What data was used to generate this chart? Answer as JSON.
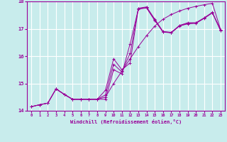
{
  "xlabel": "Windchill (Refroidissement éolien,°C)",
  "bg_color": "#c8ecec",
  "line_color": "#990099",
  "grid_color": "#ffffff",
  "xlim": [
    -0.5,
    23.5
  ],
  "ylim": [
    14.0,
    18.0
  ],
  "xticks": [
    0,
    1,
    2,
    3,
    4,
    5,
    6,
    7,
    8,
    9,
    10,
    11,
    12,
    13,
    14,
    15,
    16,
    17,
    18,
    19,
    20,
    21,
    22,
    23
  ],
  "yticks": [
    14,
    15,
    16,
    17,
    18
  ],
  "curve1_x": [
    0,
    1,
    2,
    3,
    4,
    5,
    6,
    7,
    8,
    9,
    10,
    11,
    12,
    13,
    14,
    15,
    16,
    17,
    18,
    19,
    20,
    21,
    22,
    23
  ],
  "curve1_y": [
    14.15,
    14.22,
    14.28,
    14.8,
    14.6,
    14.42,
    14.42,
    14.42,
    14.42,
    14.42,
    15.5,
    15.35,
    16.45,
    17.72,
    17.76,
    17.3,
    16.88,
    16.85,
    17.1,
    17.18,
    17.2,
    17.38,
    17.58,
    16.93
  ],
  "curve2_x": [
    0,
    1,
    2,
    3,
    4,
    5,
    6,
    7,
    8,
    9,
    10,
    11,
    12,
    13,
    14,
    15,
    16,
    17,
    18,
    19,
    20,
    21,
    22,
    23
  ],
  "curve2_y": [
    14.15,
    14.22,
    14.28,
    14.8,
    14.6,
    14.42,
    14.42,
    14.42,
    14.42,
    14.75,
    15.9,
    15.5,
    15.75,
    17.75,
    17.8,
    17.35,
    16.9,
    16.87,
    17.12,
    17.22,
    17.22,
    17.4,
    17.6,
    16.95
  ],
  "curve3_x": [
    0,
    1,
    2,
    3,
    4,
    5,
    6,
    7,
    8,
    9,
    10,
    11,
    12,
    13,
    14,
    15,
    16,
    17,
    18,
    19,
    20,
    21,
    22,
    23
  ],
  "curve3_y": [
    14.15,
    14.22,
    14.28,
    14.8,
    14.6,
    14.42,
    14.42,
    14.42,
    14.42,
    14.58,
    15.7,
    15.42,
    16.1,
    17.73,
    17.78,
    17.32,
    16.89,
    16.86,
    17.11,
    17.2,
    17.21,
    17.39,
    17.59,
    16.94
  ],
  "curve4_x": [
    3,
    4,
    5,
    6,
    7,
    8,
    9,
    10,
    11,
    12,
    13,
    14,
    15,
    16,
    17,
    18,
    19,
    20,
    21,
    22,
    23
  ],
  "curve4_y": [
    14.8,
    14.6,
    14.42,
    14.42,
    14.42,
    14.42,
    14.5,
    15.0,
    15.45,
    15.9,
    16.35,
    16.75,
    17.1,
    17.35,
    17.52,
    17.65,
    17.75,
    17.82,
    17.88,
    17.93,
    16.97
  ]
}
